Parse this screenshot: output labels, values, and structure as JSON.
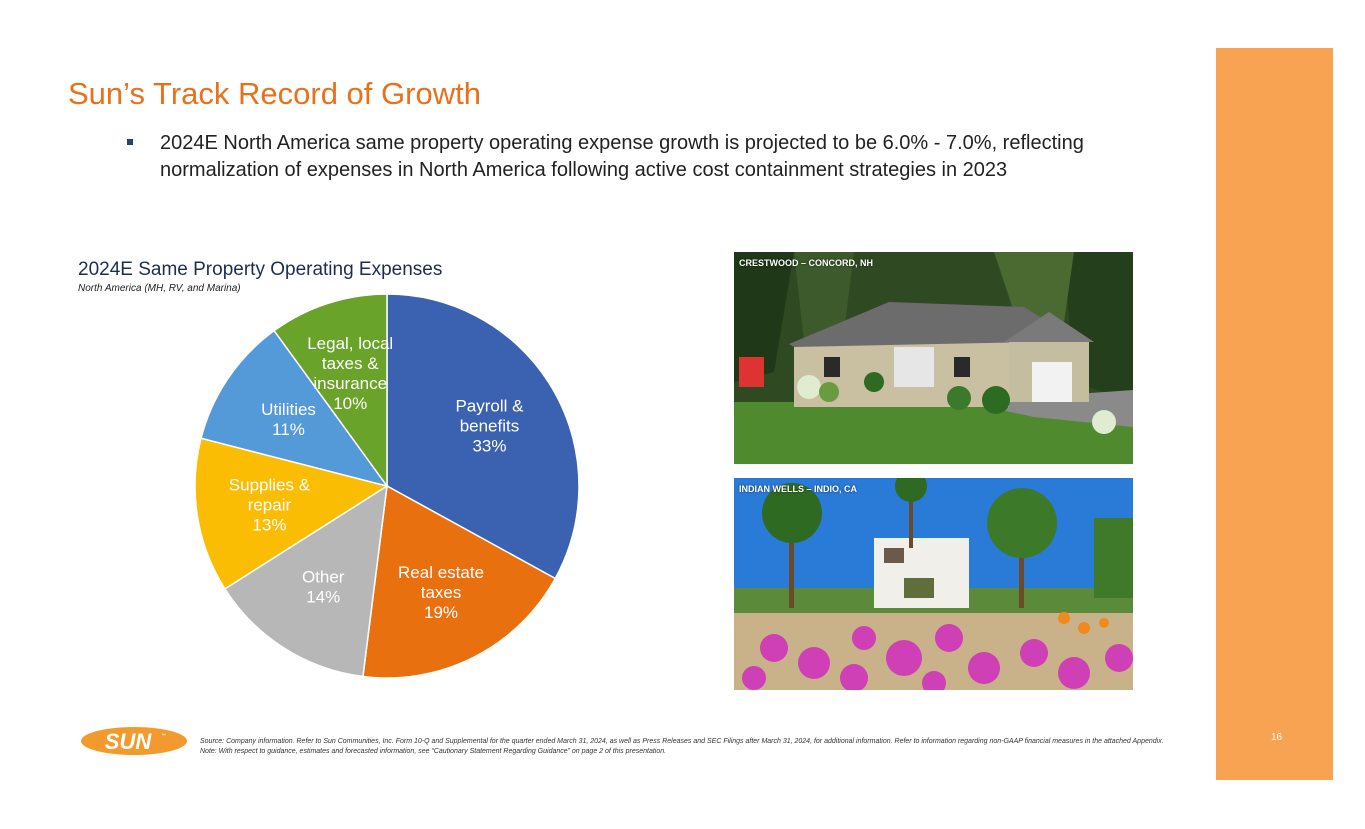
{
  "slide": {
    "title": "Sun’s Track Record of Growth",
    "bullet": "2024E North America same property operating expense growth is projected to be 6.0% - 7.0%, reflecting normalization of expenses in North America following active cost containment strategies in 2023",
    "page_number": "16",
    "accent_color": "#e8711b",
    "sidebar_color": "#f7a351"
  },
  "chart_data": {
    "type": "pie",
    "title": "2024E Same Property Operating Expenses",
    "subtitle": "North America (MH, RV, and Marina)",
    "unit": "%",
    "slices": [
      {
        "label": [
          "Payroll &",
          "benefits"
        ],
        "value": 33,
        "value_label": "33%",
        "color": "#3a62b0",
        "label_color": "#ffffff"
      },
      {
        "label": [
          "Real estate",
          "taxes"
        ],
        "value": 19,
        "value_label": "19%",
        "color": "#e8700e",
        "label_color": "#ffffff"
      },
      {
        "label": [
          "Other"
        ],
        "value": 14,
        "value_label": "14%",
        "color": "#b7b7b7",
        "label_color": "#ffffff"
      },
      {
        "label": [
          "Supplies &",
          "repair"
        ],
        "value": 13,
        "value_label": "13%",
        "color": "#fbbc04",
        "label_color": "#ffffff"
      },
      {
        "label": [
          "Utilities"
        ],
        "value": 11,
        "value_label": "11%",
        "color": "#5499d8",
        "label_color": "#ffffff"
      },
      {
        "label": [
          "Legal, local",
          "taxes &",
          "insurance"
        ],
        "value": 10,
        "value_label": "10%",
        "color": "#6aa329",
        "label_color": "#ffffff"
      }
    ],
    "start": "12 o'clock",
    "direction": "clockwise"
  },
  "photos": {
    "photo1_caption": "CRESTWOOD – CONCORD, NH",
    "photo2_caption": "INDIAN WELLS – INDIO, CA"
  },
  "logo": {
    "text": "SUN",
    "tm": "™",
    "color": "#f39a2e"
  },
  "footnotes": {
    "source": "Source: Company information. Refer to Sun Communities, Inc. Form 10-Q and Supplemental for the quarter ended March 31, 2024, as well as Press Releases and SEC Filings after March 31, 2024, for additional information. Refer to information regarding non-GAAP financial measures in the attached Appendix.",
    "note": "Note: With respect to guidance, estimates and forecasted information, see “Cautionary Statement Regarding Guidance” on page 2 of this presentation."
  }
}
